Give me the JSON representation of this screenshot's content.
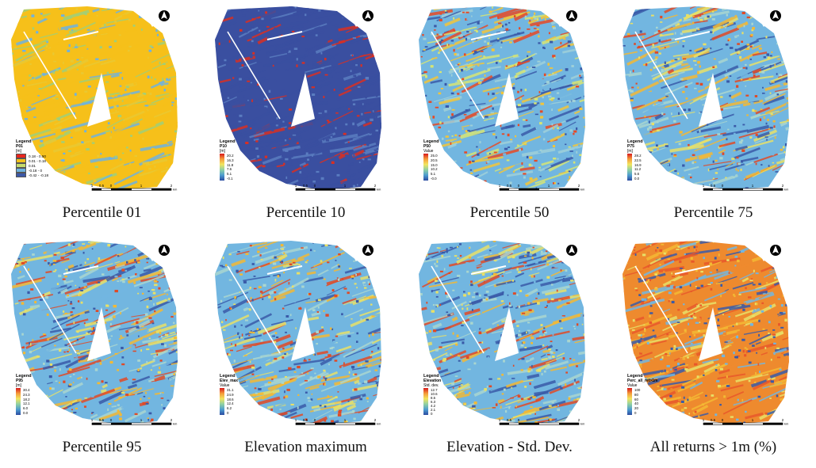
{
  "panels": [
    {
      "caption": "Percentile 01",
      "legend": {
        "title": "Legend",
        "field": "P01",
        "unit": "[m]",
        "type": "classes",
        "classes": [
          {
            "label": "0.18 - 0.50",
            "color": "#e8251e"
          },
          {
            "label": "0.01 - 0.18",
            "color": "#f4c21a"
          },
          {
            "label": "0.01",
            "color": "#c7dc6b"
          },
          {
            "label": "-0.18 - 0",
            "color": "#6fb2df"
          },
          {
            "label": "-0.42 - -0.18",
            "color": "#3c57a6"
          }
        ]
      },
      "scale_ticks": [
        "1",
        "0.5",
        "0",
        "1",
        "2"
      ],
      "scale_unit": "km",
      "palette": [
        "#f6c01a",
        "#f6c01a",
        "#f6c01a",
        "#e9c832",
        "#9fcf7a",
        "#6fb2df"
      ]
    },
    {
      "caption": "Percentile 10",
      "legend": {
        "title": "Legend",
        "field": "P10",
        "unit": "[m]",
        "type": "ramp",
        "values": [
          "20.2",
          "16.3",
          "11.8",
          "7.6",
          "5.1",
          "-0.1"
        ]
      },
      "scale_ticks": [
        "1",
        "0.5",
        "0",
        "1",
        "2"
      ],
      "scale_unit": "km",
      "palette": [
        "#3a4fa0",
        "#3a4fa0",
        "#3a4fa0",
        "#3a4fa0",
        "#5a7cc0",
        "#d92f22"
      ]
    },
    {
      "caption": "Percentile 50",
      "legend": {
        "title": "Legend",
        "field": "P50",
        "unit": "Value",
        "type": "ramp",
        "values": [
          "25.0",
          "20.5",
          "15.0",
          "10.2",
          "5.1",
          "-0.0"
        ]
      },
      "scale_ticks": [
        "1",
        "0.5",
        "0",
        "1",
        "2"
      ],
      "scale_unit": "km",
      "palette": [
        "#72b6e0",
        "#9fd0d8",
        "#d6e574",
        "#f2c53a",
        "#e64a26",
        "#3a5aa8"
      ]
    },
    {
      "caption": "Percentile 75",
      "legend": {
        "title": "Legend",
        "field": "P75",
        "unit": "[m]",
        "type": "ramp",
        "values": [
          "28.2",
          "22.5",
          "16.9",
          "11.2",
          "5.6",
          "0.0"
        ]
      },
      "scale_ticks": [
        "1",
        "0.5",
        "0",
        "1",
        "2"
      ],
      "scale_unit": "km",
      "palette": [
        "#72b6e0",
        "#a9d6cf",
        "#e8e067",
        "#f3b934",
        "#e04a26",
        "#3a5aa8"
      ]
    },
    {
      "caption": "Percentile 95",
      "legend": {
        "title": "Legend",
        "field": "P95",
        "unit": "[m]",
        "type": "ramp",
        "values": [
          "30.4",
          "24.3",
          "18.2",
          "12.1",
          "6.0",
          "0.0"
        ]
      },
      "scale_ticks": [
        "1",
        "0.5",
        "0",
        "1",
        "2"
      ],
      "scale_unit": "km",
      "palette": [
        "#72b6e0",
        "#a9d6cf",
        "#e8e067",
        "#f3b934",
        "#e04a26",
        "#3a5aa8"
      ]
    },
    {
      "caption": "Elevation maximum",
      "legend": {
        "title": "Legend",
        "field": "Elev_max",
        "unit": "Value",
        "type": "ramp",
        "values": [
          "31.1",
          "24.9",
          "18.6",
          "12.4",
          "6.2",
          "0"
        ]
      },
      "scale_ticks": [
        "1",
        "0.5",
        "0",
        "1",
        "2"
      ],
      "scale_unit": "km",
      "palette": [
        "#72b6e0",
        "#a9d6cf",
        "#e8e067",
        "#f3b934",
        "#e04a26",
        "#3a5aa8"
      ]
    },
    {
      "caption": "Elevation - Std. Dev.",
      "legend": {
        "title": "Legend",
        "field": "Elevation",
        "unit": "Std. dev.",
        "type": "ramp",
        "values": [
          "12.7",
          "10.6",
          "8.5",
          "6.3",
          "4.2",
          "2.1",
          "0"
        ]
      },
      "scale_ticks": [
        "1",
        "0.5",
        "0",
        "1",
        "2"
      ],
      "scale_unit": "km",
      "palette": [
        "#72b6e0",
        "#a9d6cf",
        "#e8e067",
        "#f3b934",
        "#e04a26",
        "#3a5aa8"
      ]
    },
    {
      "caption": "All returns > 1m (%)",
      "legend": {
        "title": "Legend",
        "field": "Perc_all_ret>1m",
        "unit": "Value",
        "type": "ramp",
        "values": [
          "100",
          "80",
          "60",
          "40",
          "20",
          "0"
        ]
      },
      "scale_ticks": [
        "1",
        "0.5",
        "0",
        "1",
        "2"
      ],
      "scale_unit": "km",
      "palette": [
        "#ee8a2e",
        "#e8572a",
        "#f3b934",
        "#e8e067",
        "#72b6e0",
        "#3a5aa8"
      ]
    }
  ]
}
